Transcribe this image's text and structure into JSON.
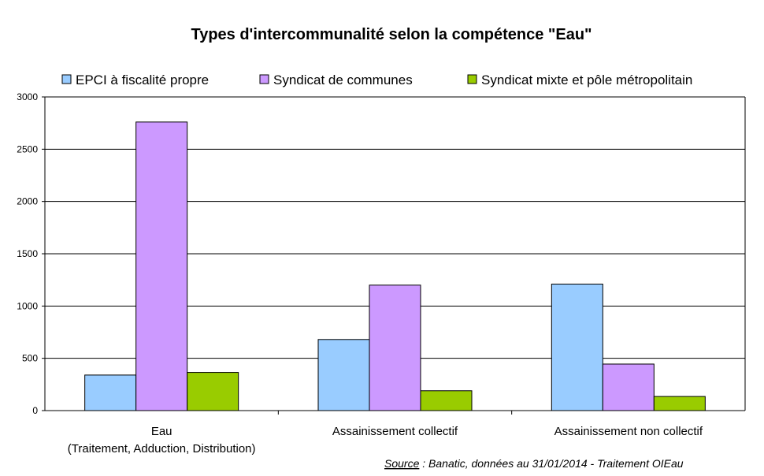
{
  "chart_data": {
    "type": "bar",
    "title": "Types d'intercommunalité selon la compétence \"Eau\"",
    "categories": [
      [
        "Eau",
        "(Traitement, Adduction, Distribution)"
      ],
      [
        "Assainissement collectif"
      ],
      [
        "Assainissement non collectif"
      ]
    ],
    "series": [
      {
        "name": "EPCI à fiscalité propre",
        "color": "#99ccff",
        "values": [
          340,
          680,
          1210
        ]
      },
      {
        "name": "Syndicat de communes",
        "color": "#cc99ff",
        "values": [
          2760,
          1200,
          445
        ]
      },
      {
        "name": "Syndicat mixte et pôle métropolitain",
        "color": "#99cc00",
        "values": [
          365,
          190,
          135
        ]
      }
    ],
    "ylim": [
      0,
      3000
    ],
    "yticks": [
      0,
      500,
      1000,
      1500,
      2000,
      2500,
      3000
    ],
    "grid": true,
    "legend_position": "top",
    "source_label": "Source",
    "source_text": " : Banatic, données au 31/01/2014 - Traitement OIEau"
  }
}
